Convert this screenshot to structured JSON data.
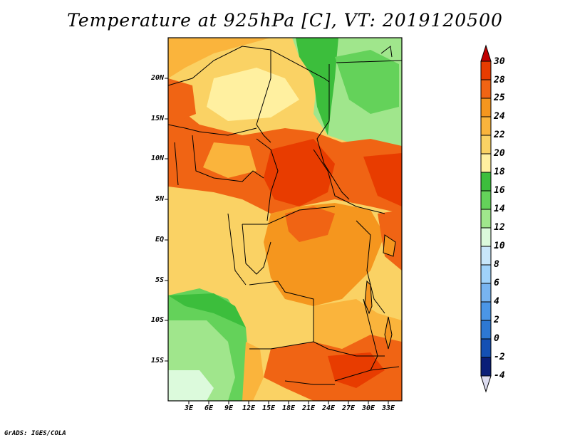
{
  "title": "Temperature at 925hPa [C], VT: 2019120500",
  "credit": "GrADS: IGES/COLA",
  "latitude_labels": [
    "20N",
    "15N",
    "10N",
    "5N",
    "EQ",
    "5S",
    "10S",
    "15S"
  ],
  "longitude_labels": [
    "3E",
    "6E",
    "9E",
    "12E",
    "15E",
    "18E",
    "21E",
    "24E",
    "27E",
    "30E",
    "33E"
  ],
  "colorbar": {
    "labels": [
      "30",
      "28",
      "25",
      "24",
      "22",
      "20",
      "18",
      "16",
      "14",
      "12",
      "10",
      "8",
      "6",
      "4",
      "2",
      "0",
      "-2",
      "-4"
    ],
    "colors": [
      "#c00000",
      "#e83c00",
      "#f06414",
      "#f5961e",
      "#fab43c",
      "#fad264",
      "#fff0a0",
      "#3cbe3c",
      "#64d25a",
      "#a0e68c",
      "#dcfadc",
      "#c8e6fa",
      "#a0d2fa",
      "#78b4f0",
      "#4b96e6",
      "#2d78d2",
      "#1450b4",
      "#0a1e78",
      "#dcdcf0"
    ]
  }
}
